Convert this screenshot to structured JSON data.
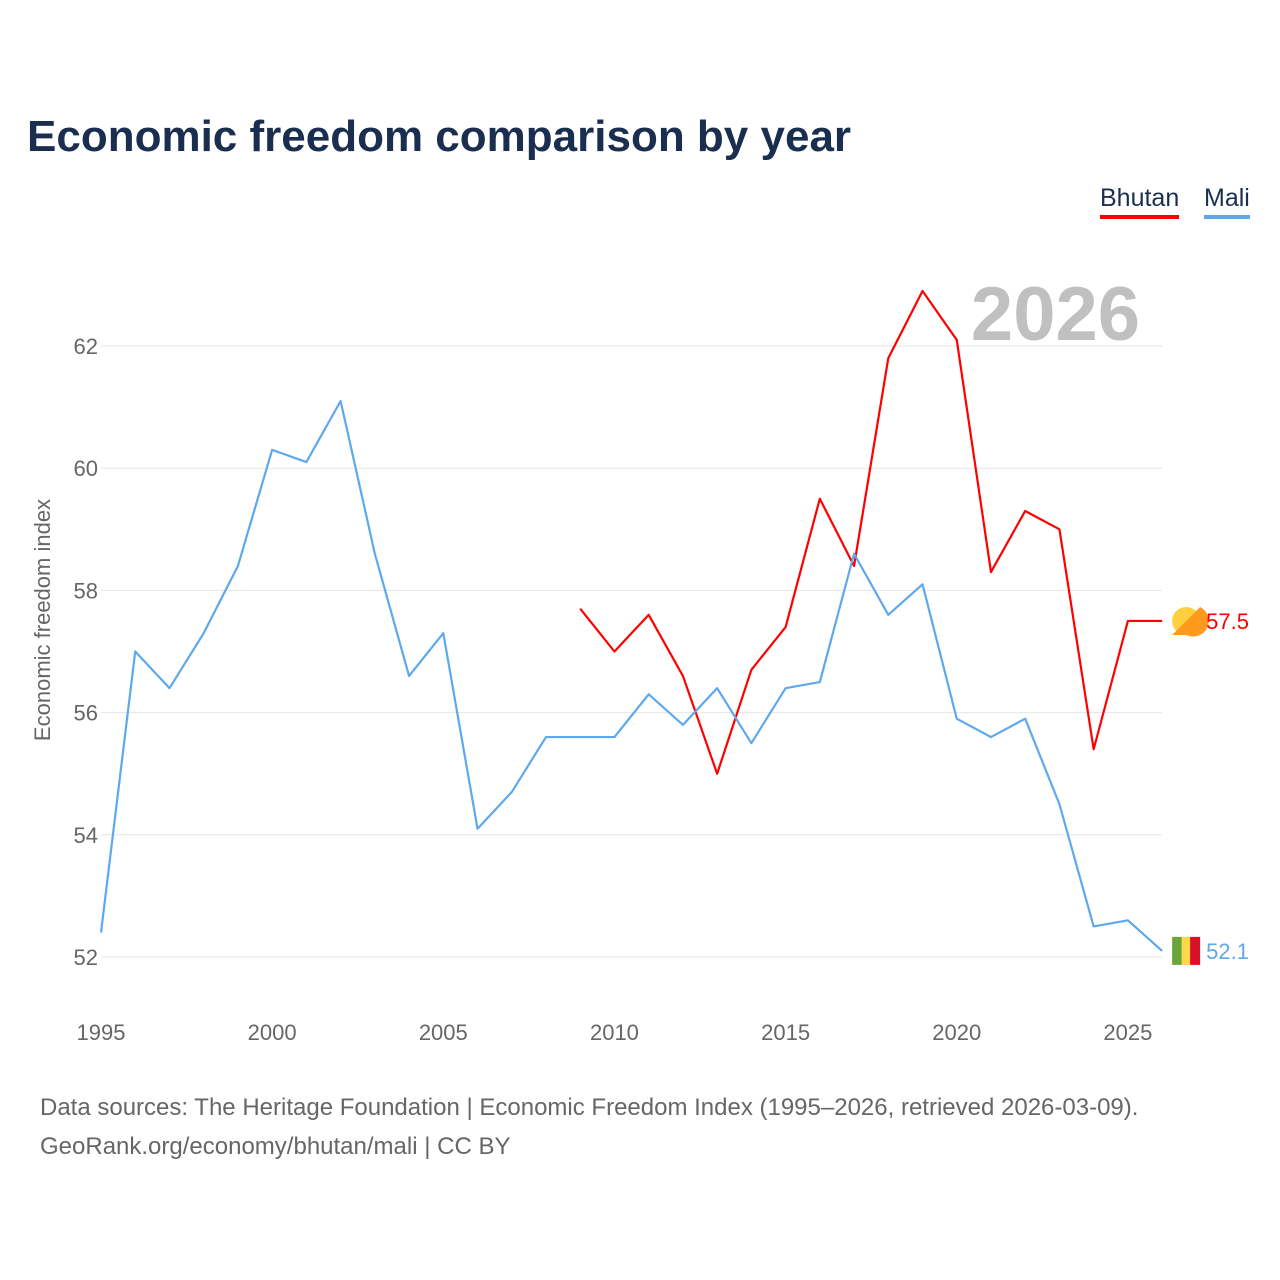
{
  "chart_data": {
    "type": "line",
    "title": "Economic freedom comparison by year",
    "ylabel": "Economic freedom index",
    "xlabel": "",
    "xlim": [
      1995,
      2026
    ],
    "ylim": [
      51,
      63.5
    ],
    "yticks": [
      52,
      54,
      56,
      58,
      60,
      62
    ],
    "xticks": [
      1995,
      2000,
      2005,
      2010,
      2015,
      2020,
      2025
    ],
    "year_label": "2026",
    "legend_position": "top-right",
    "grid": true,
    "series": [
      {
        "name": "Bhutan",
        "color": "#ff0000",
        "end_label": "57.5",
        "flag": "bhutan-flag",
        "x": [
          2009,
          2010,
          2011,
          2012,
          2013,
          2014,
          2015,
          2016,
          2017,
          2018,
          2019,
          2020,
          2021,
          2022,
          2023,
          2024,
          2025,
          2026
        ],
        "values": [
          57.7,
          57.0,
          57.6,
          56.6,
          55.0,
          56.7,
          57.4,
          59.5,
          58.4,
          61.8,
          62.9,
          62.1,
          58.3,
          59.3,
          59.0,
          55.4,
          57.5,
          57.5
        ]
      },
      {
        "name": "Mali",
        "color": "#5ea8ee",
        "end_label": "52.1",
        "flag": "mali-flag",
        "x": [
          1995,
          1996,
          1997,
          1998,
          1999,
          2000,
          2001,
          2002,
          2003,
          2004,
          2005,
          2006,
          2007,
          2008,
          2009,
          2010,
          2011,
          2012,
          2013,
          2014,
          2015,
          2016,
          2017,
          2018,
          2019,
          2020,
          2021,
          2022,
          2023,
          2024,
          2025,
          2026
        ],
        "values": [
          52.4,
          57.0,
          56.4,
          57.3,
          58.4,
          60.3,
          60.1,
          61.1,
          58.6,
          56.6,
          57.3,
          54.1,
          54.7,
          55.6,
          55.6,
          55.6,
          56.3,
          55.8,
          56.4,
          55.5,
          56.4,
          56.5,
          58.6,
          57.6,
          58.1,
          55.9,
          55.6,
          55.9,
          54.5,
          52.5,
          52.6,
          52.1
        ]
      }
    ]
  },
  "source": {
    "line1": "Data sources: The Heritage Foundation | Economic Freedom Index (1995–2026, retrieved 2026-03-09).",
    "line2": "GeoRank.org/economy/bhutan/mali | CC BY"
  }
}
